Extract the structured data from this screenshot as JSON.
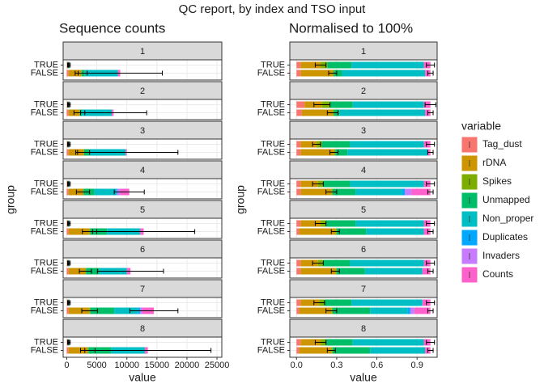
{
  "title": "QC report, by index and TSO input",
  "chart_data": [
    {
      "type": "bar",
      "title": "Sequence counts",
      "x_label": "value",
      "y_label": "group",
      "facets": [
        "1",
        "2",
        "3",
        "4",
        "5",
        "6",
        "7",
        "8"
      ],
      "categories": [
        "TRUE",
        "FALSE"
      ],
      "xlim": [
        -600,
        25800
      ],
      "xticks": [
        0,
        5000,
        10000,
        15000,
        20000,
        25000
      ],
      "grid": true,
      "legend_title": "variable",
      "legend": "right",
      "series": [
        {
          "name": "Tag_dust",
          "color": "#F8766D",
          "values": [
            [
              50,
              300
            ],
            [
              50,
              300
            ],
            [
              50,
              300
            ],
            [
              50,
              300
            ],
            [
              50,
              300
            ],
            [
              50,
              300
            ],
            [
              50,
              300
            ],
            [
              50,
              300
            ]
          ]
        },
        {
          "name": "rDNA",
          "color": "#CD9600",
          "values": [
            [
              150,
              2100
            ],
            [
              150,
              1800
            ],
            [
              150,
              2500
            ],
            [
              150,
              2400
            ],
            [
              150,
              3500
            ],
            [
              150,
              2800
            ],
            [
              150,
              3500
            ],
            [
              150,
              3200
            ]
          ],
          "errors": [
            [
              60,
              1000
            ],
            [
              60,
              900
            ],
            [
              60,
              1000
            ],
            [
              60,
              1100
            ],
            [
              60,
              1200
            ],
            [
              60,
              1000
            ],
            [
              60,
              1300
            ],
            [
              60,
              1200
            ]
          ]
        },
        {
          "name": "Spikes",
          "color": "#7CAE00",
          "values": [
            [
              20,
              100
            ],
            [
              20,
              100
            ],
            [
              20,
              100
            ],
            [
              20,
              100
            ],
            [
              20,
              100
            ],
            [
              20,
              100
            ],
            [
              20,
              100
            ],
            [
              20,
              100
            ]
          ]
        },
        {
          "name": "Unmapped",
          "color": "#00BE67",
          "values": [
            [
              80,
              500
            ],
            [
              80,
              300
            ],
            [
              80,
              900
            ],
            [
              80,
              1800
            ],
            [
              80,
              2800
            ],
            [
              80,
              2200
            ],
            [
              80,
              4000
            ],
            [
              80,
              3800
            ]
          ]
        },
        {
          "name": "Non_proper",
          "color": "#00BFC4",
          "values": [
            [
              150,
              5500
            ],
            [
              150,
              5000
            ],
            [
              150,
              6000
            ],
            [
              150,
              3600
            ],
            [
              150,
              5500
            ],
            [
              150,
              4600
            ],
            [
              150,
              4000
            ],
            [
              150,
              5600
            ]
          ]
        },
        {
          "name": "Duplicates",
          "color": "#00A9FF",
          "values": [
            [
              0,
              0
            ],
            [
              0,
              0
            ],
            [
              0,
              0
            ],
            [
              0,
              200
            ],
            [
              0,
              0
            ],
            [
              0,
              0
            ],
            [
              0,
              300
            ],
            [
              0,
              0
            ]
          ]
        },
        {
          "name": "Invaders",
          "color": "#C77CFF",
          "values": [
            [
              0,
              0
            ],
            [
              0,
              0
            ],
            [
              0,
              0
            ],
            [
              0,
              500
            ],
            [
              0,
              0
            ],
            [
              0,
              0
            ],
            [
              0,
              400
            ],
            [
              0,
              0
            ]
          ]
        },
        {
          "name": "Counts",
          "color": "#FF61CC",
          "values": [
            [
              30,
              400
            ],
            [
              30,
              300
            ],
            [
              30,
              200
            ],
            [
              30,
              1500
            ],
            [
              30,
              600
            ],
            [
              30,
              600
            ],
            [
              30,
              1900
            ],
            [
              30,
              500
            ]
          ],
          "errors": [
            [
              100,
              7000
            ],
            [
              100,
              5500
            ],
            [
              100,
              8500
            ],
            [
              100,
              2500
            ],
            [
              100,
              8500
            ],
            [
              100,
              5500
            ],
            [
              100,
              4000
            ],
            [
              100,
              10500
            ]
          ]
        }
      ]
    },
    {
      "type": "bar",
      "title": "Normalised to 100%",
      "x_label": "value",
      "y_label": "group",
      "facets": [
        "1",
        "2",
        "3",
        "4",
        "5",
        "6",
        "7",
        "8"
      ],
      "categories": [
        "TRUE",
        "FALSE"
      ],
      "xlim": [
        -0.05,
        1.05
      ],
      "xticks": [
        {
          "value": 0,
          "label": "0.0"
        },
        0.3,
        0.6,
        0.9
      ],
      "grid": true,
      "series": [
        {
          "name": "Tag_dust",
          "color": "#F8766D",
          "values": [
            [
              0.03,
              0.03
            ],
            [
              0.06,
              0.04
            ],
            [
              0.03,
              0.03
            ],
            [
              0.03,
              0.03
            ],
            [
              0.03,
              0.02
            ],
            [
              0.03,
              0.03
            ],
            [
              0.03,
              0.02
            ],
            [
              0.03,
              0.02
            ]
          ]
        },
        {
          "name": "rDNA",
          "color": "#CD9600",
          "values": [
            [
              0.15,
              0.24
            ],
            [
              0.13,
              0.23
            ],
            [
              0.12,
              0.25
            ],
            [
              0.13,
              0.23
            ],
            [
              0.15,
              0.27
            ],
            [
              0.13,
              0.26
            ],
            [
              0.14,
              0.24
            ],
            [
              0.15,
              0.24
            ]
          ],
          "errors": [
            [
              0.04,
              0.03
            ],
            [
              0.06,
              0.04
            ],
            [
              0.03,
              0.03
            ],
            [
              0.04,
              0.04
            ],
            [
              0.04,
              0.03
            ],
            [
              0.04,
              0.03
            ],
            [
              0.04,
              0.04
            ],
            [
              0.04,
              0.03
            ]
          ]
        },
        {
          "name": "Spikes",
          "color": "#7CAE00",
          "values": [
            [
              0.05,
              0.01
            ],
            [
              0.06,
              0.01
            ],
            [
              0.04,
              0.01
            ],
            [
              0.04,
              0.01
            ],
            [
              0.04,
              0.01
            ],
            [
              0.04,
              0.01
            ],
            [
              0.04,
              0.01
            ],
            [
              0.04,
              0.01
            ]
          ]
        },
        {
          "name": "Unmapped",
          "color": "#00BE67",
          "values": [
            [
              0.18,
              0.06
            ],
            [
              0.17,
              0.04
            ],
            [
              0.21,
              0.09
            ],
            [
              0.2,
              0.17
            ],
            [
              0.22,
              0.22
            ],
            [
              0.2,
              0.21
            ],
            [
              0.2,
              0.28
            ],
            [
              0.2,
              0.28
            ]
          ]
        },
        {
          "name": "Non_proper",
          "color": "#00BFC4",
          "values": [
            [
              0.54,
              0.62
            ],
            [
              0.53,
              0.64
            ],
            [
              0.55,
              0.6
            ],
            [
              0.55,
              0.35
            ],
            [
              0.51,
              0.43
            ],
            [
              0.55,
              0.43
            ],
            [
              0.53,
              0.28
            ],
            [
              0.53,
              0.41
            ]
          ]
        },
        {
          "name": "Duplicates",
          "color": "#00A9FF",
          "values": [
            [
              0,
              0
            ],
            [
              0,
              0
            ],
            [
              0,
              0
            ],
            [
              0,
              0.02
            ],
            [
              0,
              0
            ],
            [
              0,
              0
            ],
            [
              0,
              0.02
            ],
            [
              0,
              0
            ]
          ]
        },
        {
          "name": "Invaders",
          "color": "#C77CFF",
          "values": [
            [
              0,
              0
            ],
            [
              0,
              0
            ],
            [
              0,
              0
            ],
            [
              0,
              0.05
            ],
            [
              0,
              0
            ],
            [
              0,
              0
            ],
            [
              0,
              0.03
            ],
            [
              0,
              0
            ]
          ]
        },
        {
          "name": "Counts",
          "color": "#FF61CC",
          "values": [
            [
              0.05,
              0.04
            ],
            [
              0.05,
              0.04
            ],
            [
              0.05,
              0.02
            ],
            [
              0.05,
              0.14
            ],
            [
              0.05,
              0.05
            ],
            [
              0.05,
              0.06
            ],
            [
              0.06,
              0.12
            ],
            [
              0.05,
              0.04
            ]
          ],
          "errors": [
            [
              0.03,
              0.02
            ],
            [
              0.04,
              0.02
            ],
            [
              0.03,
              0.02
            ],
            [
              0.03,
              0.02
            ],
            [
              0.03,
              0.02
            ],
            [
              0.03,
              0.02
            ],
            [
              0.03,
              0.02
            ],
            [
              0.03,
              0.02
            ]
          ]
        }
      ]
    }
  ]
}
